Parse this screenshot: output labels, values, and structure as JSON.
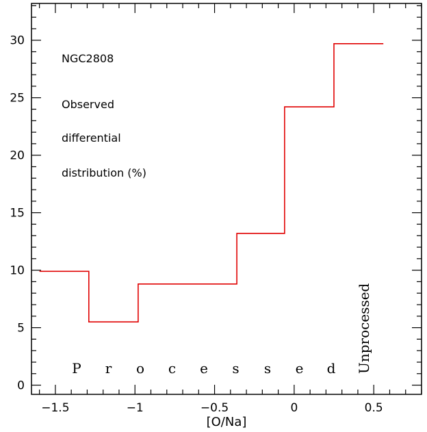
{
  "chart_data": {
    "type": "line",
    "step": true,
    "xlabel": "[O/Na]",
    "ylabel": "",
    "title": "",
    "xlim": [
      -1.65,
      0.8
    ],
    "ylim": [
      -0.8,
      33.2
    ],
    "x_ticks": [
      -1.5,
      -1,
      -0.5,
      0,
      0.5
    ],
    "x_tick_labels": [
      "−1.5",
      "−1",
      "−0.5",
      "0",
      "0.5"
    ],
    "y_ticks": [
      0,
      5,
      10,
      15,
      20,
      25,
      30
    ],
    "y_tick_labels": [
      "0",
      "5",
      "10",
      "15",
      "20",
      "25",
      "30"
    ],
    "bin_edges": [
      -1.6,
      -1.29,
      -0.98,
      -0.36,
      -0.06,
      0.25,
      0.56
    ],
    "values": [
      9.9,
      5.5,
      8.8,
      13.2,
      24.2,
      29.7
    ],
    "line_color": "#e00000",
    "annotations": {
      "cluster": "NGC2808",
      "line1": "Observed",
      "line2": "differential",
      "line3": "distribution (%)",
      "processed": [
        "P",
        "r",
        "o",
        "c",
        "e",
        "s",
        "s",
        "e",
        "d"
      ],
      "unprocessed": "Unprocessed"
    }
  }
}
